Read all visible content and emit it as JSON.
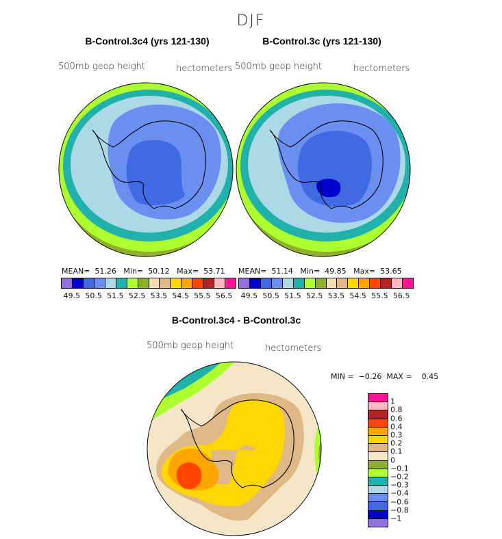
{
  "figure_title": "DJF",
  "colors": {
    "levels_abs": [
      "#9370db",
      "#0000cd",
      "#4169e1",
      "#6a8ff0",
      "#add8e6",
      "#20b2aa",
      "#adff2f",
      "#8fb02a",
      "#f5deb3",
      "#deb887",
      "#ffd700",
      "#ffa500",
      "#ff4500",
      "#b22222",
      "#ffb6c1",
      "#ff1493"
    ],
    "levels_diff": [
      "#ff1493",
      "#ffb6c1",
      "#b22222",
      "#ff4500",
      "#ffa500",
      "#ffd700",
      "#deb887",
      "#f5e6c8",
      "#8fb02a",
      "#adff2f",
      "#20b2aa",
      "#add8e6",
      "#6a8ff0",
      "#4169e1",
      "#0000cd",
      "#9370db"
    ]
  },
  "chart_data": [
    {
      "type": "heatmap",
      "title": "B-Control.3c4 (yrs 121-130)",
      "variable": "500mb geop height",
      "units": "hectometers",
      "stats": {
        "mean_label": "MEAN=",
        "mean": "51.26",
        "min_label": "Min=",
        "min": "50.12",
        "max_label": "Max=",
        "max": "53.71"
      },
      "colorbar_ticks": [
        "49.5",
        "50.5",
        "51.5",
        "52.5",
        "53.5",
        "54.5",
        "55.5",
        "56.5"
      ]
    },
    {
      "type": "heatmap",
      "title": "B-Control.3c (yrs 121-130)",
      "variable": "500mb geop height",
      "units": "hectometers",
      "stats": {
        "mean_label": "MEAN=",
        "mean": "51.14",
        "min_label": "Min=",
        "min": "49.85",
        "max_label": "Max=",
        "max": "53.65"
      },
      "colorbar_ticks": [
        "49.5",
        "50.5",
        "51.5",
        "52.5",
        "53.5",
        "54.5",
        "55.5",
        "56.5"
      ]
    },
    {
      "type": "heatmap",
      "title": "B-Control.3c4 - B-Control.3c",
      "variable": "500mb geop height",
      "units": "hectometers",
      "stats": {
        "min_label": "MIN =",
        "min": "−0.26",
        "max_label": "MAX =",
        "max": "0.45"
      },
      "colorbar_ticks": [
        "1",
        "0.8",
        "0.6",
        "0.4",
        "0.3",
        "0.2",
        "0.1",
        "0",
        "−0.1",
        "−0.2",
        "−0.3",
        "−0.4",
        "−0.6",
        "−0.8",
        "−1"
      ]
    }
  ]
}
